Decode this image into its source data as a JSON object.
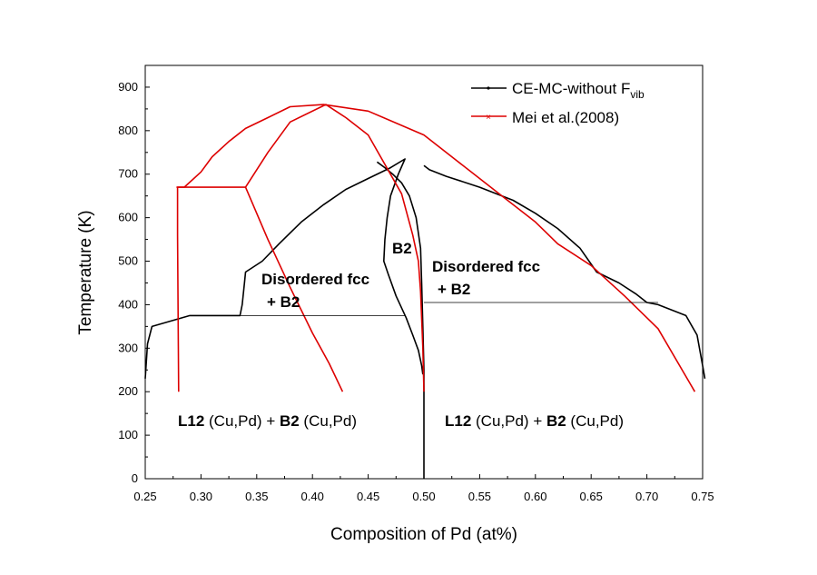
{
  "chart_data": {
    "type": "line",
    "title": "",
    "xlabel": "Composition of Pd (at%)",
    "ylabel": "Temperature (K)",
    "xlim": [
      0.25,
      0.75
    ],
    "ylim": [
      0,
      950
    ],
    "x_ticks": [
      "0.25",
      "0.30",
      "0.35",
      "0.40",
      "0.45",
      "0.50",
      "0.55",
      "0.60",
      "0.65",
      "0.70",
      "0.75"
    ],
    "y_ticks": [
      "0",
      "100",
      "200",
      "300",
      "400",
      "500",
      "600",
      "700",
      "800",
      "900"
    ],
    "grid": false,
    "legend_position": "top-right",
    "legend": [
      {
        "label": "CE-MC-without F",
        "subscript": "vib",
        "color": "#000000"
      },
      {
        "label": "Mei et al.(2008)",
        "color": "#dd0000"
      }
    ],
    "colors": {
      "black_series": "#000000",
      "red_series": "#dd0000"
    },
    "region_labels": [
      {
        "id": "left_disordered",
        "lines": [
          "Disordered fcc",
          "+ B2"
        ],
        "bold": true
      },
      {
        "id": "b2",
        "lines": [
          "B2"
        ],
        "bold": true
      },
      {
        "id": "right_disordered",
        "lines": [
          "Disordered fcc",
          "+ B2"
        ],
        "bold": true
      },
      {
        "id": "left_l12",
        "parts": [
          {
            "t": "L12",
            "b": true
          },
          {
            "t": " (Cu,Pd) + ",
            "b": false
          },
          {
            "t": "B2",
            "b": true
          },
          {
            "t": " (Cu,Pd)",
            "b": false
          }
        ]
      },
      {
        "id": "right_l12",
        "parts": [
          {
            "t": "L12",
            "b": true
          },
          {
            "t": " (Cu,Pd) + ",
            "b": false
          },
          {
            "t": "B2",
            "b": true
          },
          {
            "t": " (Cu,Pd)",
            "b": false
          }
        ]
      }
    ],
    "series": [
      {
        "name": "CE-MC-without F",
        "color": "#000000",
        "segments": [
          [
            [
              0.25,
              230
            ],
            [
              0.252,
              310
            ],
            [
              0.256,
              350
            ],
            [
              0.29,
              375
            ],
            [
              0.335,
              375
            ],
            [
              0.337,
              400
            ],
            [
              0.339,
              450
            ],
            [
              0.34,
              475
            ],
            [
              0.355,
              500
            ],
            [
              0.37,
              540
            ],
            [
              0.39,
              590
            ],
            [
              0.41,
              630
            ],
            [
              0.43,
              665
            ],
            [
              0.45,
              690
            ],
            [
              0.47,
              715
            ],
            [
              0.483,
              735
            ],
            [
              0.477,
              700
            ],
            [
              0.47,
              650
            ],
            [
              0.467,
              600
            ],
            [
              0.465,
              550
            ],
            [
              0.464,
              500
            ],
            [
              0.468,
              470
            ],
            [
              0.475,
              420
            ],
            [
              0.484,
              370
            ],
            [
              0.49,
              330
            ],
            [
              0.495,
              295
            ],
            [
              0.498,
              260
            ],
            [
              0.499,
              240
            ]
          ],
          [
            [
              0.458,
              728
            ],
            [
              0.465,
              715
            ],
            [
              0.472,
              700
            ],
            [
              0.48,
              680
            ],
            [
              0.487,
              650
            ],
            [
              0.493,
              600
            ],
            [
              0.497,
              530
            ],
            [
              0.498,
              450
            ],
            [
              0.499,
              350
            ],
            [
              0.5,
              250
            ],
            [
              0.5,
              0
            ]
          ],
          [
            [
              0.5,
              720
            ],
            [
              0.505,
              710
            ],
            [
              0.52,
              695
            ],
            [
              0.55,
              670
            ],
            [
              0.58,
              640
            ],
            [
              0.6,
              610
            ],
            [
              0.62,
              575
            ],
            [
              0.64,
              530
            ],
            [
              0.655,
              475
            ],
            [
              0.675,
              450
            ],
            [
              0.69,
              425
            ],
            [
              0.7,
              405
            ],
            [
              0.71,
              400
            ],
            [
              0.735,
              375
            ],
            [
              0.745,
              330
            ],
            [
              0.75,
              260
            ],
            [
              0.752,
              230
            ]
          ]
        ]
      },
      {
        "name": "Mei et al.(2008)",
        "color": "#dd0000",
        "segments": [
          [
            [
              0.28,
              200
            ],
            [
              0.279,
              560
            ],
            [
              0.279,
              670
            ],
            [
              0.34,
              670
            ],
            [
              0.36,
              750
            ],
            [
              0.38,
              820
            ],
            [
              0.412,
              860
            ],
            [
              0.43,
              830
            ],
            [
              0.45,
              790
            ],
            [
              0.48,
              655
            ],
            [
              0.49,
              560
            ],
            [
              0.495,
              500
            ],
            [
              0.497,
              430
            ],
            [
              0.499,
              300
            ],
            [
              0.5,
              200
            ]
          ],
          [
            [
              0.278,
              670
            ],
            [
              0.285,
              670
            ],
            [
              0.3,
              705
            ],
            [
              0.31,
              740
            ],
            [
              0.325,
              775
            ],
            [
              0.34,
              805
            ],
            [
              0.36,
              830
            ],
            [
              0.38,
              855
            ],
            [
              0.41,
              860
            ],
            [
              0.45,
              845
            ],
            [
              0.5,
              790
            ],
            [
              0.53,
              730
            ],
            [
              0.57,
              650
            ],
            [
              0.6,
              590
            ],
            [
              0.62,
              540
            ],
            [
              0.65,
              490
            ],
            [
              0.68,
              420
            ],
            [
              0.71,
              345
            ],
            [
              0.743,
              200
            ]
          ],
          [
            [
              0.34,
              670
            ],
            [
              0.36,
              550
            ],
            [
              0.38,
              440
            ],
            [
              0.4,
              335
            ],
            [
              0.415,
              265
            ],
            [
              0.427,
              200
            ]
          ]
        ]
      }
    ],
    "horizontal_lines": [
      {
        "x": [
          0.29,
          0.483
        ],
        "y": 375
      },
      {
        "x": [
          0.5,
          0.71
        ],
        "y": 405
      }
    ]
  }
}
